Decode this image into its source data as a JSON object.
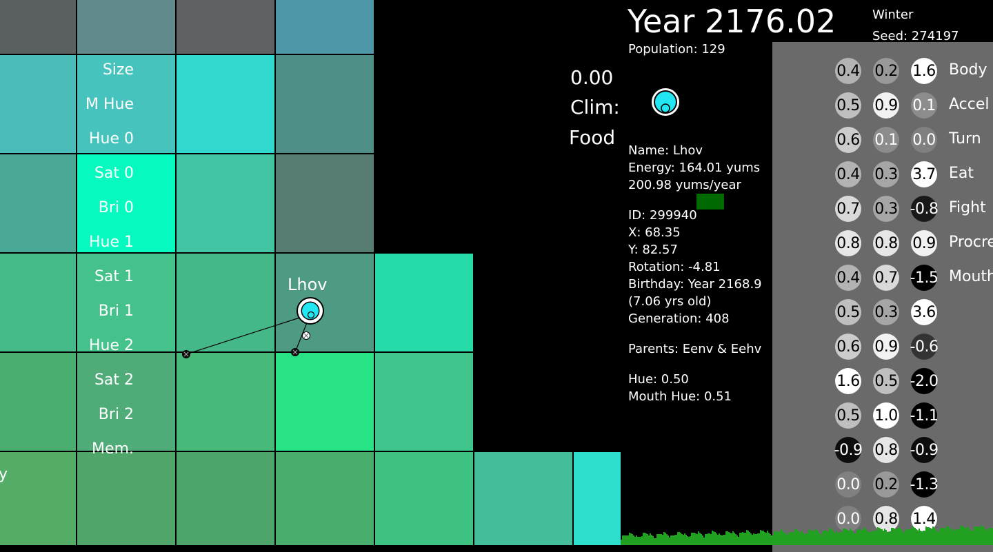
{
  "header": {
    "year_title": "Year 2176.02",
    "season": "Winter",
    "seed": "Seed: 274197",
    "population": "Population: 129"
  },
  "climate": {
    "value": "0.00",
    "label": "Clim:",
    "food_label": "Food"
  },
  "selected_creature": {
    "name": "Name: Lhov",
    "energy": "Energy: 164.01 yums",
    "rate": "200.98 yums/year",
    "energy_bar_color": "#006a00",
    "id": "ID: 299940",
    "x": "X: 68.35",
    "y": "Y: 82.57",
    "rotation": "Rotation: -4.81",
    "birthday": "Birthday: Year 2168.9",
    "age": "(7.06 yrs old)",
    "generation": "Generation: 408",
    "parents": "Parents: Eenv & Eehv",
    "hue": "Hue: 0.50",
    "mouth_hue": "Mouth Hue: 0.51",
    "body_color": "#22e6f2"
  },
  "world": {
    "creature_label": "Lhov",
    "edge_label": "y",
    "tiles": [
      {
        "color": "#5a5f5f"
      },
      {
        "color": "#61888a"
      },
      {
        "color": "#5e6264"
      },
      {
        "color": "#4c96a5"
      },
      {
        "color": "#4abdbb"
      },
      {
        "color": "#47c3be"
      },
      {
        "color": "#31d8cf"
      },
      {
        "color": "#4f8f87"
      },
      {
        "color": "#4aa996"
      },
      {
        "color": "#06f9bf"
      },
      {
        "color": "#41c5a3"
      },
      {
        "color": "#577c71"
      },
      {
        "color": "#45bb8a"
      },
      {
        "color": "#45c18b"
      },
      {
        "color": "#45b889"
      },
      {
        "color": "#4f9a85"
      },
      {
        "color": "#25dba8"
      },
      {
        "color": "#4aae71"
      },
      {
        "color": "#4fab77"
      },
      {
        "color": "#47ba7a"
      },
      {
        "color": "#27e385"
      },
      {
        "color": "#3fc58b"
      },
      {
        "color": "#53ad66"
      },
      {
        "color": "#4fa56a"
      },
      {
        "color": "#4ca56a"
      },
      {
        "color": "#47ae6e"
      },
      {
        "color": "#3dc282"
      },
      {
        "color": "#44bd9a"
      },
      {
        "color": "#2ddfcc"
      }
    ]
  },
  "brain": {
    "input_labels": [
      "Size",
      "M Hue",
      "Hue 0",
      "Sat 0",
      "Bri 0",
      "Hue 1",
      "Sat 1",
      "Bri 1",
      "Hue 2",
      "Sat 2",
      "Bri 2",
      "Mem.",
      "",
      ""
    ],
    "output_labels": [
      "Body",
      "Accel",
      "Turn",
      "Eat",
      "Fight",
      "Procre",
      "Mouth"
    ],
    "values": [
      [
        0.4,
        0.2,
        1.6
      ],
      [
        0.5,
        0.9,
        0.1
      ],
      [
        0.6,
        0.1,
        0.0
      ],
      [
        0.4,
        0.3,
        3.7
      ],
      [
        0.7,
        0.3,
        -0.8
      ],
      [
        0.8,
        0.8,
        0.9
      ],
      [
        0.4,
        0.7,
        -1.5
      ],
      [
        0.5,
        0.3,
        3.6
      ],
      [
        0.6,
        0.9,
        -0.6
      ],
      [
        1.6,
        0.5,
        -2.0
      ],
      [
        0.5,
        1.0,
        -1.1
      ],
      [
        -0.9,
        0.8,
        -0.9
      ],
      [
        0.0,
        0.2,
        -1.3
      ],
      [
        0.0,
        0.8,
        1.4
      ]
    ],
    "panel_color": "#6a6a6a"
  },
  "ground": {
    "color": "#22a022"
  }
}
